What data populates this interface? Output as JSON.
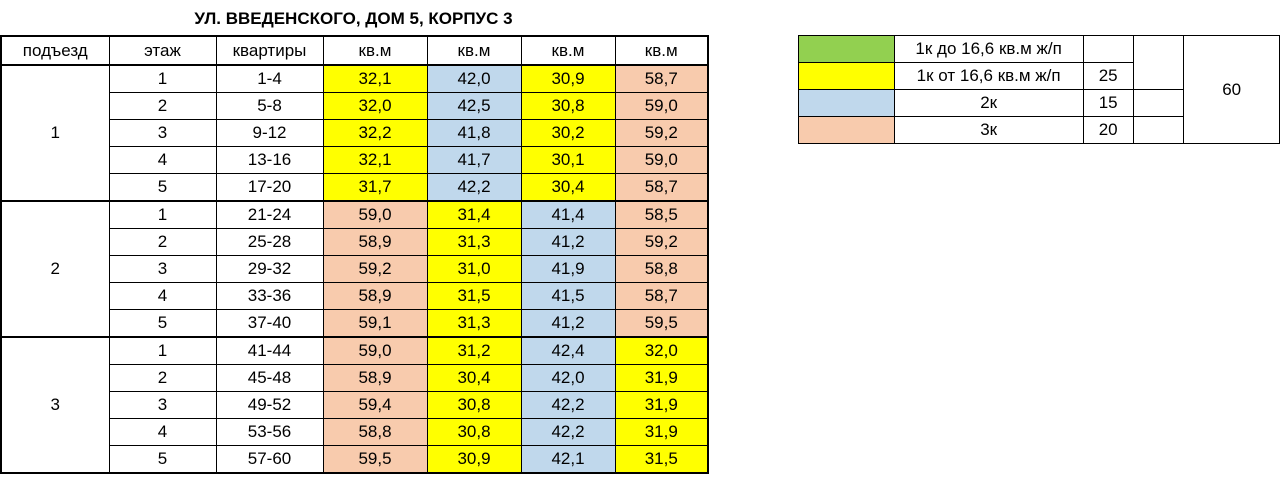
{
  "title": "УЛ. ВВЕДЕНСКОГО, ДОМ 5, КОРПУС 3",
  "colors": {
    "yellow": "#ffff00",
    "blue": "#c0d8ec",
    "salmon": "#f8cbad",
    "green": "#92d050"
  },
  "headers": [
    "подъезд",
    "этаж",
    "квартиры",
    "кв.м",
    "кв.м",
    "кв.м",
    "кв.м"
  ],
  "entrances": [
    {
      "number": "1",
      "floors": [
        {
          "floor": "1",
          "apts": "1-4",
          "areas": [
            "32,1",
            "42,0",
            "30,9",
            "58,7"
          ],
          "types": [
            "y",
            "b",
            "y",
            "s"
          ]
        },
        {
          "floor": "2",
          "apts": "5-8",
          "areas": [
            "32,0",
            "42,5",
            "30,8",
            "59,0"
          ],
          "types": [
            "y",
            "b",
            "y",
            "s"
          ]
        },
        {
          "floor": "3",
          "apts": "9-12",
          "areas": [
            "32,2",
            "41,8",
            "30,2",
            "59,2"
          ],
          "types": [
            "y",
            "b",
            "y",
            "s"
          ]
        },
        {
          "floor": "4",
          "apts": "13-16",
          "areas": [
            "32,1",
            "41,7",
            "30,1",
            "59,0"
          ],
          "types": [
            "y",
            "b",
            "y",
            "s"
          ]
        },
        {
          "floor": "5",
          "apts": "17-20",
          "areas": [
            "31,7",
            "42,2",
            "30,4",
            "58,7"
          ],
          "types": [
            "y",
            "b",
            "y",
            "s"
          ]
        }
      ]
    },
    {
      "number": "2",
      "floors": [
        {
          "floor": "1",
          "apts": "21-24",
          "areas": [
            "59,0",
            "31,4",
            "41,4",
            "58,5"
          ],
          "types": [
            "s",
            "y",
            "b",
            "s"
          ]
        },
        {
          "floor": "2",
          "apts": "25-28",
          "areas": [
            "58,9",
            "31,3",
            "41,2",
            "59,2"
          ],
          "types": [
            "s",
            "y",
            "b",
            "s"
          ]
        },
        {
          "floor": "3",
          "apts": "29-32",
          "areas": [
            "59,2",
            "31,0",
            "41,9",
            "58,8"
          ],
          "types": [
            "s",
            "y",
            "b",
            "s"
          ]
        },
        {
          "floor": "4",
          "apts": "33-36",
          "areas": [
            "58,9",
            "31,5",
            "41,5",
            "58,7"
          ],
          "types": [
            "s",
            "y",
            "b",
            "s"
          ]
        },
        {
          "floor": "5",
          "apts": "37-40",
          "areas": [
            "59,1",
            "31,3",
            "41,2",
            "59,5"
          ],
          "types": [
            "s",
            "y",
            "b",
            "s"
          ]
        }
      ]
    },
    {
      "number": "3",
      "floors": [
        {
          "floor": "1",
          "apts": "41-44",
          "areas": [
            "59,0",
            "31,2",
            "42,4",
            "32,0"
          ],
          "types": [
            "s",
            "y",
            "b",
            "y"
          ]
        },
        {
          "floor": "2",
          "apts": "45-48",
          "areas": [
            "58,9",
            "30,4",
            "42,0",
            "31,9"
          ],
          "types": [
            "s",
            "y",
            "b",
            "y"
          ]
        },
        {
          "floor": "3",
          "apts": "49-52",
          "areas": [
            "59,4",
            "30,8",
            "42,2",
            "31,9"
          ],
          "types": [
            "s",
            "y",
            "b",
            "y"
          ]
        },
        {
          "floor": "4",
          "apts": "53-56",
          "areas": [
            "58,8",
            "30,8",
            "42,2",
            "31,9"
          ],
          "types": [
            "s",
            "y",
            "b",
            "y"
          ]
        },
        {
          "floor": "5",
          "apts": "57-60",
          "areas": [
            "59,5",
            "30,9",
            "42,1",
            "31,5"
          ],
          "types": [
            "s",
            "y",
            "b",
            "y"
          ]
        }
      ]
    }
  ],
  "legend": {
    "rows": [
      {
        "swatch": "green",
        "label": "1к до 16,6 кв.м ж/п",
        "count": ""
      },
      {
        "swatch": "yellow",
        "label": "1к от 16,6 кв.м ж/п",
        "count": "25"
      },
      {
        "swatch": "blue",
        "label": "2к",
        "count": "15"
      },
      {
        "swatch": "salmon",
        "label": "3к",
        "count": "20"
      }
    ],
    "total": "60"
  }
}
